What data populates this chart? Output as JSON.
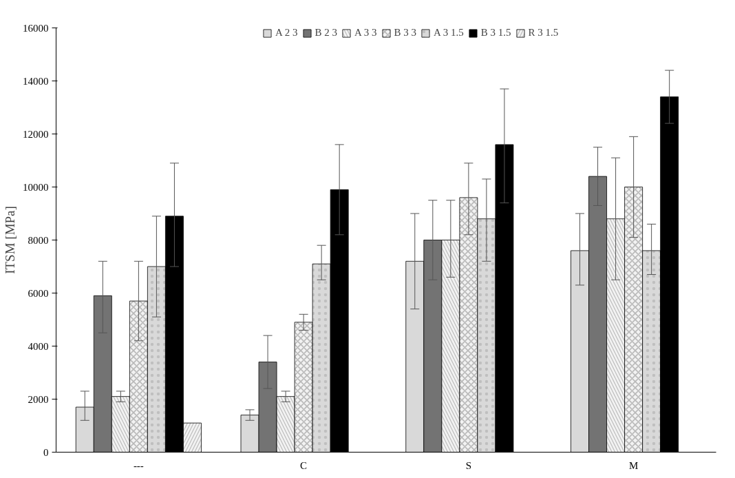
{
  "chart_data": {
    "type": "bar",
    "ylabel": "ITSM [MPa]",
    "categories": [
      "---",
      "C",
      "S",
      "M"
    ],
    "ylim": [
      0,
      16000
    ],
    "yticks": [
      0,
      2000,
      4000,
      6000,
      8000,
      10000,
      12000,
      14000,
      16000
    ],
    "legend": "top",
    "grid": false,
    "series": [
      {
        "name": "A 2 3",
        "color": "#d9d9d9",
        "values": [
          1700,
          1400,
          7200,
          7600
        ],
        "errors": [
          [
            1200,
            2300
          ],
          [
            1200,
            1600
          ],
          [
            5400,
            9000
          ],
          [
            6300,
            9000
          ]
        ]
      },
      {
        "name": "B 2 3",
        "color": "#737373",
        "values": [
          5900,
          3400,
          8000,
          10400
        ],
        "errors": [
          [
            4500,
            7200
          ],
          [
            2400,
            4400
          ],
          [
            6500,
            9500
          ],
          [
            9300,
            11500
          ]
        ]
      },
      {
        "name": "A 3 3",
        "color": "#f2f2f2",
        "values": [
          2100,
          2100,
          8000,
          8800
        ],
        "errors": [
          [
            1900,
            2300
          ],
          [
            1900,
            2300
          ],
          [
            6600,
            9500
          ],
          [
            6500,
            11100
          ]
        ]
      },
      {
        "name": "B 3 3",
        "color": "#f2f2f2",
        "values": [
          5700,
          4900,
          9600,
          10000
        ],
        "errors": [
          [
            4200,
            7200
          ],
          [
            4600,
            5200
          ],
          [
            8200,
            10900
          ],
          [
            8100,
            11900
          ]
        ]
      },
      {
        "name": "A 3 1.5",
        "color": "#d9d9d9",
        "values": [
          7000,
          7100,
          8800,
          7600
        ],
        "errors": [
          [
            5100,
            8900
          ],
          [
            6500,
            7800
          ],
          [
            7200,
            10300
          ],
          [
            6700,
            8600
          ]
        ]
      },
      {
        "name": "B 3 1.5",
        "color": "#000000",
        "values": [
          8900,
          9900,
          11600,
          13400
        ],
        "errors": [
          [
            7000,
            10900
          ],
          [
            8200,
            11600
          ],
          [
            9400,
            13700
          ],
          [
            12400,
            14400
          ]
        ]
      },
      {
        "name": "R 3 1.5",
        "color": "#f2f2f2",
        "values": [
          1100,
          null,
          null,
          null
        ]
      }
    ]
  }
}
